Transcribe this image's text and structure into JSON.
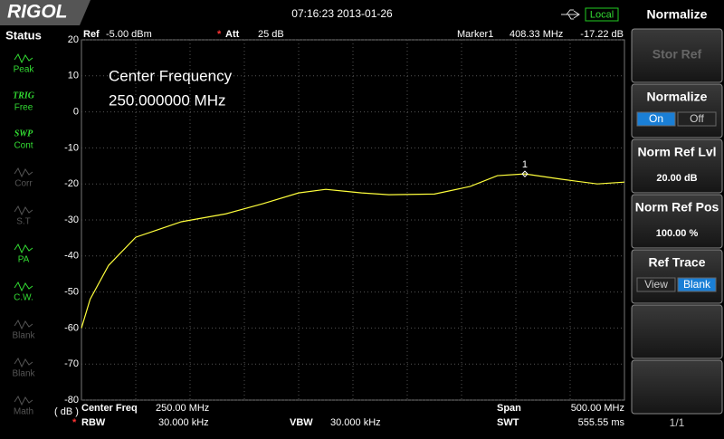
{
  "top_bar": {
    "logo": "RIGOL",
    "datetime": "07:16:23 2013-01-26",
    "mode": "Local"
  },
  "status_panel": {
    "title": "Status",
    "items": [
      {
        "label": "Peak"
      },
      {
        "tag": "TRIG",
        "label": "Free"
      },
      {
        "tag": "SWP",
        "label": "Cont"
      },
      {
        "label": "Corr"
      },
      {
        "label": "S.T"
      },
      {
        "label": "PA"
      },
      {
        "label": "C.W."
      },
      {
        "label": "Blank"
      },
      {
        "label": "Blank"
      },
      {
        "label": "Math"
      }
    ]
  },
  "plot": {
    "header": {
      "ref_label": "Ref",
      "ref_value": "-5.00 dBm",
      "att_flag": "*",
      "att_label": "Att",
      "att_value": "25 dB",
      "marker_label": "Marker1",
      "marker_freq": "408.33 MHz",
      "marker_level": "-17.22 dB"
    },
    "overlay": [
      "Center Frequency",
      "250.000000 MHz"
    ],
    "unit": "( dB )",
    "footer": {
      "center_label": "Center Freq",
      "center_value": "250.00 MHz",
      "span_label": "Span",
      "span_value": "500.00 MHz",
      "rbw_flag": "*",
      "rbw_label": "RBW",
      "rbw_value": "30.000 kHz",
      "vbw_label": "VBW",
      "vbw_value": "30.000 kHz",
      "swt_label": "SWT",
      "swt_value": "555.55 ms"
    },
    "xlim": [
      0,
      500
    ],
    "ylim": [
      -80,
      20
    ],
    "yticks": [
      20,
      10,
      0,
      -10,
      -20,
      -30,
      -40,
      -50,
      -60,
      -70,
      -80
    ],
    "trace": {
      "color": "#ffff3c",
      "x": [
        0,
        8,
        25,
        50,
        92,
        133,
        167,
        200,
        225,
        258,
        283,
        325,
        358,
        383,
        408.33,
        442,
        475,
        500
      ],
      "values": [
        -60,
        -52,
        -42.6,
        -34.8,
        -30.5,
        -28.3,
        -25.5,
        -22.5,
        -21.5,
        -22.5,
        -23,
        -22.8,
        -20.7,
        -17.7,
        -17.22,
        -18.7,
        -20,
        -19.5
      ]
    },
    "marker": {
      "label": "1",
      "x": 408.33,
      "value": -17.22
    }
  },
  "menu": {
    "title": "Normalize",
    "buttons": [
      {
        "label": "Stor Ref"
      },
      {
        "label": "Normalize",
        "options": [
          "On",
          "Off"
        ]
      },
      {
        "label": "Norm Ref Lvl",
        "value": "20.00 dB"
      },
      {
        "label": "Norm Ref Pos",
        "value": "100.00 %"
      },
      {
        "label": "Ref Trace",
        "options": [
          "View",
          "Blank"
        ]
      }
    ],
    "page": "1/1"
  }
}
